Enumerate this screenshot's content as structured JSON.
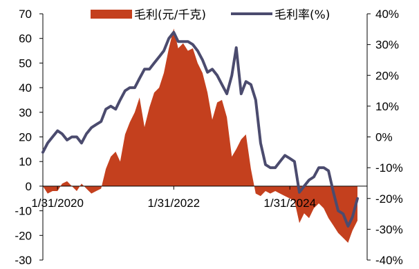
{
  "chart_data": {
    "type": "area",
    "title": "",
    "xlabel": "",
    "ylabel_left": "",
    "ylabel_right": "",
    "x_tick_labels": [
      "1/31/2020",
      "1/31/2022",
      "1/31/2024"
    ],
    "x_tick_dates": [
      "2020-01-31",
      "2022-01-31",
      "2024-01-31"
    ],
    "x_range": [
      "2019-10-31",
      "2025-05-31"
    ],
    "y_left_range": [
      -30,
      70
    ],
    "y_left_ticks": [
      -30,
      -20,
      -10,
      0,
      10,
      20,
      30,
      40,
      50,
      60,
      70
    ],
    "y_left_tick_labels": [
      "-30",
      "-20",
      "-10",
      "0",
      "10",
      "20",
      "30",
      "40",
      "50",
      "60",
      "70"
    ],
    "y_right_range": [
      -40,
      40
    ],
    "y_right_ticks": [
      -40,
      -30,
      -20,
      -10,
      0,
      10,
      20,
      30,
      40
    ],
    "y_right_tick_labels": [
      "-40%",
      "-30%",
      "-20%",
      "-10%",
      "0%",
      "10%",
      "20%",
      "30%",
      "40%"
    ],
    "grid": false,
    "legend_position": "top",
    "colors": {
      "area": "#C4401E",
      "line": "#4B4B6E"
    },
    "series": [
      {
        "name": "毛利(元/千克)",
        "type": "area",
        "axis": "left",
        "points": [
          [
            "2019-10-31",
            0
          ],
          [
            "2019-11-30",
            -3
          ],
          [
            "2019-12-31",
            -2
          ],
          [
            "2020-01-31",
            -2
          ],
          [
            "2020-02-29",
            1
          ],
          [
            "2020-03-31",
            2
          ],
          [
            "2020-04-30",
            0
          ],
          [
            "2020-05-31",
            -2
          ],
          [
            "2020-06-30",
            1
          ],
          [
            "2020-07-31",
            -1
          ],
          [
            "2020-08-31",
            -3
          ],
          [
            "2020-09-30",
            -2
          ],
          [
            "2020-10-31",
            -1
          ],
          [
            "2020-11-30",
            7
          ],
          [
            "2020-12-31",
            12
          ],
          [
            "2021-01-31",
            14
          ],
          [
            "2021-02-28",
            10
          ],
          [
            "2021-03-31",
            21
          ],
          [
            "2021-04-30",
            26
          ],
          [
            "2021-05-31",
            30
          ],
          [
            "2021-06-30",
            36
          ],
          [
            "2021-07-31",
            24
          ],
          [
            "2021-08-31",
            32
          ],
          [
            "2021-09-30",
            38
          ],
          [
            "2021-10-31",
            40
          ],
          [
            "2021-11-30",
            46
          ],
          [
            "2021-12-31",
            56
          ],
          [
            "2022-01-31",
            64
          ],
          [
            "2022-02-28",
            56
          ],
          [
            "2022-03-31",
            58
          ],
          [
            "2022-04-30",
            55
          ],
          [
            "2022-05-31",
            56
          ],
          [
            "2022-06-30",
            50
          ],
          [
            "2022-07-31",
            46
          ],
          [
            "2022-08-31",
            38
          ],
          [
            "2022-09-30",
            27
          ],
          [
            "2022-10-31",
            34
          ],
          [
            "2022-11-30",
            35
          ],
          [
            "2022-12-31",
            28
          ],
          [
            "2023-01-31",
            12
          ],
          [
            "2023-02-28",
            15
          ],
          [
            "2023-03-31",
            19
          ],
          [
            "2023-04-30",
            21
          ],
          [
            "2023-05-31",
            7
          ],
          [
            "2023-06-30",
            -3
          ],
          [
            "2023-07-31",
            -4
          ],
          [
            "2023-08-31",
            -2
          ],
          [
            "2023-09-30",
            -3
          ],
          [
            "2023-10-31",
            -2
          ],
          [
            "2023-11-30",
            -3
          ],
          [
            "2023-12-31",
            -4
          ],
          [
            "2024-01-31",
            -5
          ],
          [
            "2024-02-29",
            -6
          ],
          [
            "2024-03-31",
            -15
          ],
          [
            "2024-04-30",
            -11
          ],
          [
            "2024-05-31",
            -13
          ],
          [
            "2024-06-30",
            -9
          ],
          [
            "2024-07-31",
            -7
          ],
          [
            "2024-08-31",
            -9
          ],
          [
            "2024-09-30",
            -13
          ],
          [
            "2024-10-31",
            -16
          ],
          [
            "2024-11-30",
            -19
          ],
          [
            "2024-12-31",
            -21
          ],
          [
            "2025-01-31",
            -23
          ],
          [
            "2025-02-28",
            -18
          ],
          [
            "2025-03-31",
            -14
          ]
        ]
      },
      {
        "name": "毛利率(%)",
        "type": "line",
        "axis": "right",
        "points": [
          [
            "2019-10-31",
            -5
          ],
          [
            "2019-11-30",
            -2
          ],
          [
            "2019-12-31",
            0
          ],
          [
            "2020-01-31",
            2
          ],
          [
            "2020-02-29",
            1
          ],
          [
            "2020-03-31",
            -1
          ],
          [
            "2020-04-30",
            0
          ],
          [
            "2020-05-31",
            0
          ],
          [
            "2020-06-30",
            -2
          ],
          [
            "2020-07-31",
            1
          ],
          [
            "2020-08-31",
            3
          ],
          [
            "2020-09-30",
            4
          ],
          [
            "2020-10-31",
            5
          ],
          [
            "2020-11-30",
            9
          ],
          [
            "2020-12-31",
            10
          ],
          [
            "2021-01-31",
            9
          ],
          [
            "2021-02-28",
            12
          ],
          [
            "2021-03-31",
            15
          ],
          [
            "2021-04-30",
            16
          ],
          [
            "2021-05-31",
            16
          ],
          [
            "2021-06-30",
            19
          ],
          [
            "2021-07-31",
            22
          ],
          [
            "2021-08-31",
            22
          ],
          [
            "2021-09-30",
            24
          ],
          [
            "2021-10-31",
            26
          ],
          [
            "2021-11-30",
            28
          ],
          [
            "2021-12-31",
            32
          ],
          [
            "2022-01-31",
            34
          ],
          [
            "2022-02-28",
            31
          ],
          [
            "2022-03-31",
            31
          ],
          [
            "2022-04-30",
            31
          ],
          [
            "2022-05-31",
            30
          ],
          [
            "2022-06-30",
            28
          ],
          [
            "2022-07-31",
            25
          ],
          [
            "2022-08-31",
            21
          ],
          [
            "2022-09-30",
            22
          ],
          [
            "2022-10-31",
            20
          ],
          [
            "2022-11-30",
            17
          ],
          [
            "2022-12-31",
            14
          ],
          [
            "2023-01-31",
            20
          ],
          [
            "2023-02-28",
            29
          ],
          [
            "2023-03-31",
            14
          ],
          [
            "2023-04-30",
            18
          ],
          [
            "2023-05-31",
            17
          ],
          [
            "2023-06-30",
            12
          ],
          [
            "2023-07-31",
            -2
          ],
          [
            "2023-08-31",
            -9
          ],
          [
            "2023-09-30",
            -10
          ],
          [
            "2023-10-31",
            -10
          ],
          [
            "2023-11-30",
            -8
          ],
          [
            "2023-12-31",
            -6
          ],
          [
            "2024-01-31",
            -7
          ],
          [
            "2024-02-29",
            -8
          ],
          [
            "2024-03-31",
            -18
          ],
          [
            "2024-04-30",
            -16
          ],
          [
            "2024-05-31",
            -14
          ],
          [
            "2024-06-30",
            -13
          ],
          [
            "2024-07-31",
            -10
          ],
          [
            "2024-08-31",
            -10
          ],
          [
            "2024-09-30",
            -11
          ],
          [
            "2024-10-31",
            -18
          ],
          [
            "2024-11-30",
            -24
          ],
          [
            "2024-12-31",
            -25
          ],
          [
            "2025-01-31",
            -29
          ],
          [
            "2025-02-28",
            -26
          ],
          [
            "2025-03-31",
            -20
          ]
        ]
      }
    ]
  }
}
